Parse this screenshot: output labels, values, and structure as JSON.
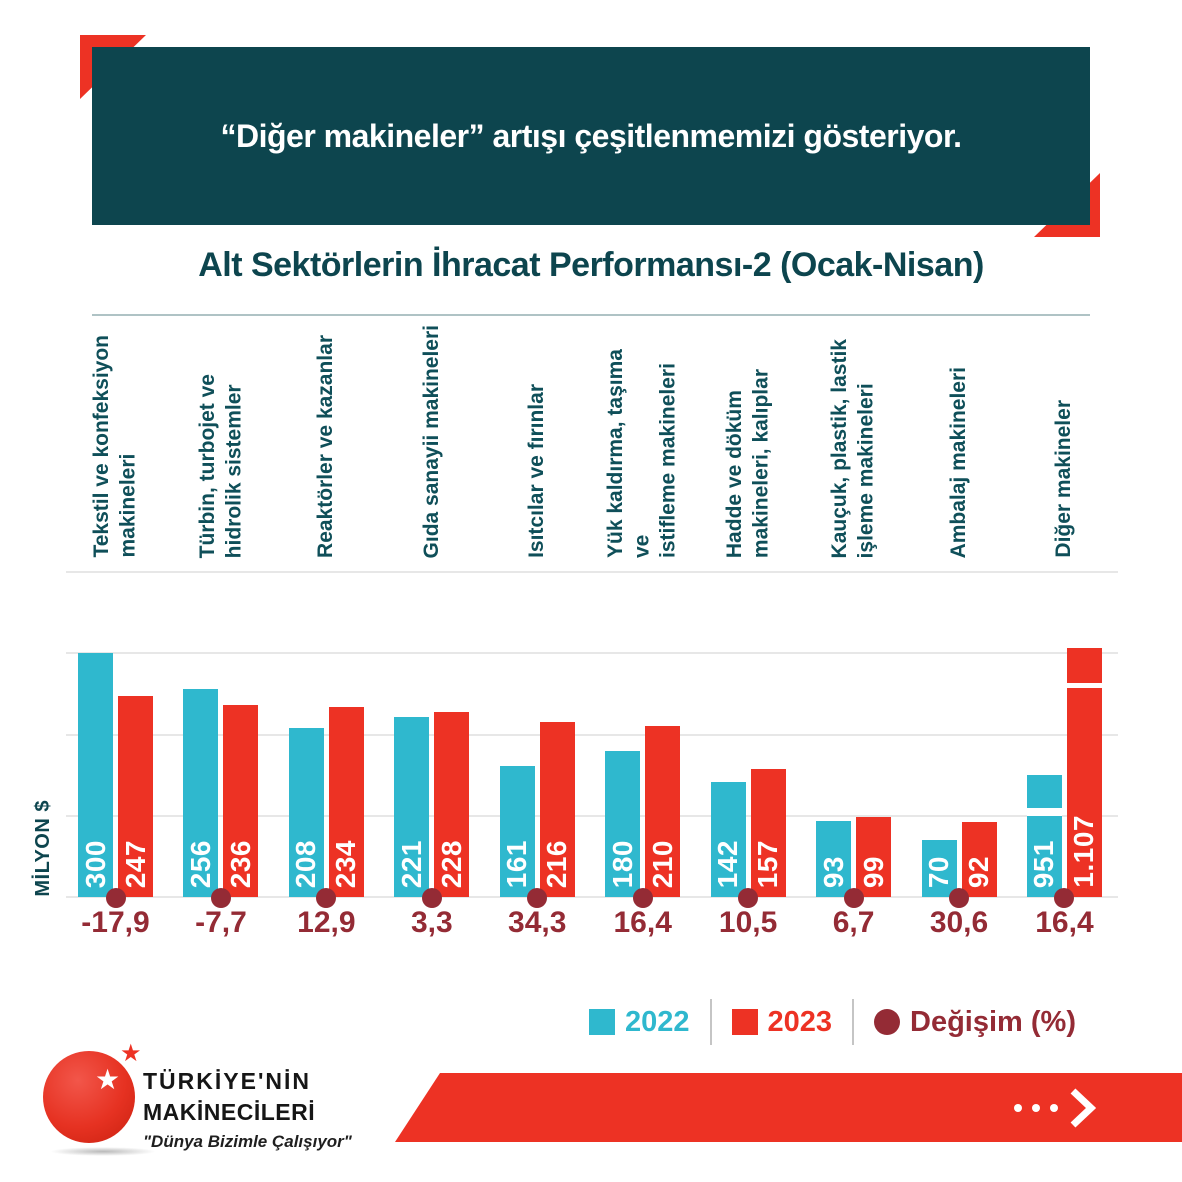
{
  "header": {
    "quote": "“Diğer makineler” artışı çeşitlenmemizi gösteriyor."
  },
  "chart_data": {
    "type": "bar",
    "title": "Alt Sektörlerin İhracat Performansı-2 (Ocak-Nisan)",
    "ylabel": "MİLYON $",
    "ylim": [
      0,
      400
    ],
    "gridline_step": 100,
    "grid": true,
    "legend_position": "bottom-right",
    "categories": [
      "Tekstil ve konfeksiyon\nmakineleri",
      "Türbin, turbojet ve\nhidrolik sistemler",
      "Reaktörler ve kazanlar",
      "Gıda sanayii makineleri",
      "Isıtcılar ve fırınlar",
      "Yük kaldırma, taşıma ve\nistifleme makineleri",
      "Hadde ve döküm\nmakineleri, kalıplar",
      "Kauçuk, plastik, lastik\nişleme makineleri",
      "Ambalaj makineleri",
      "Diğer makineler"
    ],
    "series": [
      {
        "name": "2022",
        "color": "#2FB8CE",
        "values": [
          300,
          256,
          208,
          221,
          161,
          180,
          142,
          93,
          70,
          951
        ],
        "labels": [
          "300",
          "256",
          "208",
          "221",
          "161",
          "180",
          "142",
          "93",
          "70",
          "951"
        ]
      },
      {
        "name": "2023",
        "color": "#ED3224",
        "values": [
          247,
          236,
          234,
          228,
          216,
          210,
          157,
          99,
          92,
          1107
        ],
        "labels": [
          "247",
          "236",
          "234",
          "228",
          "216",
          "210",
          "157",
          "99",
          "92",
          "1.107"
        ]
      }
    ],
    "change_series": {
      "name": "Değişim (%)",
      "color": "#942B35",
      "values": [
        "-17,9",
        "-7,7",
        "12,9",
        "3,3",
        "34,3",
        "16,4",
        "10,5",
        "6,7",
        "30,6",
        "16,4"
      ]
    },
    "axis_break": {
      "category_index": 9,
      "drawn_units": {
        "2022": 150,
        "2023": 306
      },
      "cap_units": {
        "2022": 40,
        "2023": 42
      },
      "gap_units": {
        "2022": 10,
        "2023": 7
      }
    }
  },
  "legend": {
    "items": [
      {
        "label": "2022",
        "color": "#2FB8CE",
        "marker": "square"
      },
      {
        "label": "2023",
        "color": "#ED3224",
        "marker": "square"
      },
      {
        "label": "Değişim (%)",
        "color": "#942B35",
        "marker": "circle"
      }
    ]
  },
  "footer": {
    "brand_line1": "TÜRKİYE'NİN",
    "brand_line2": "MAKİNECİLERİ",
    "tagline": "\"Dünya Bizimle Çalışıyor\""
  },
  "colors": {
    "teal": "#0D454E",
    "cyan": "#2FB8CE",
    "red": "#ED3224",
    "dark_red": "#942B35",
    "gridline": "#E7E7E7"
  }
}
